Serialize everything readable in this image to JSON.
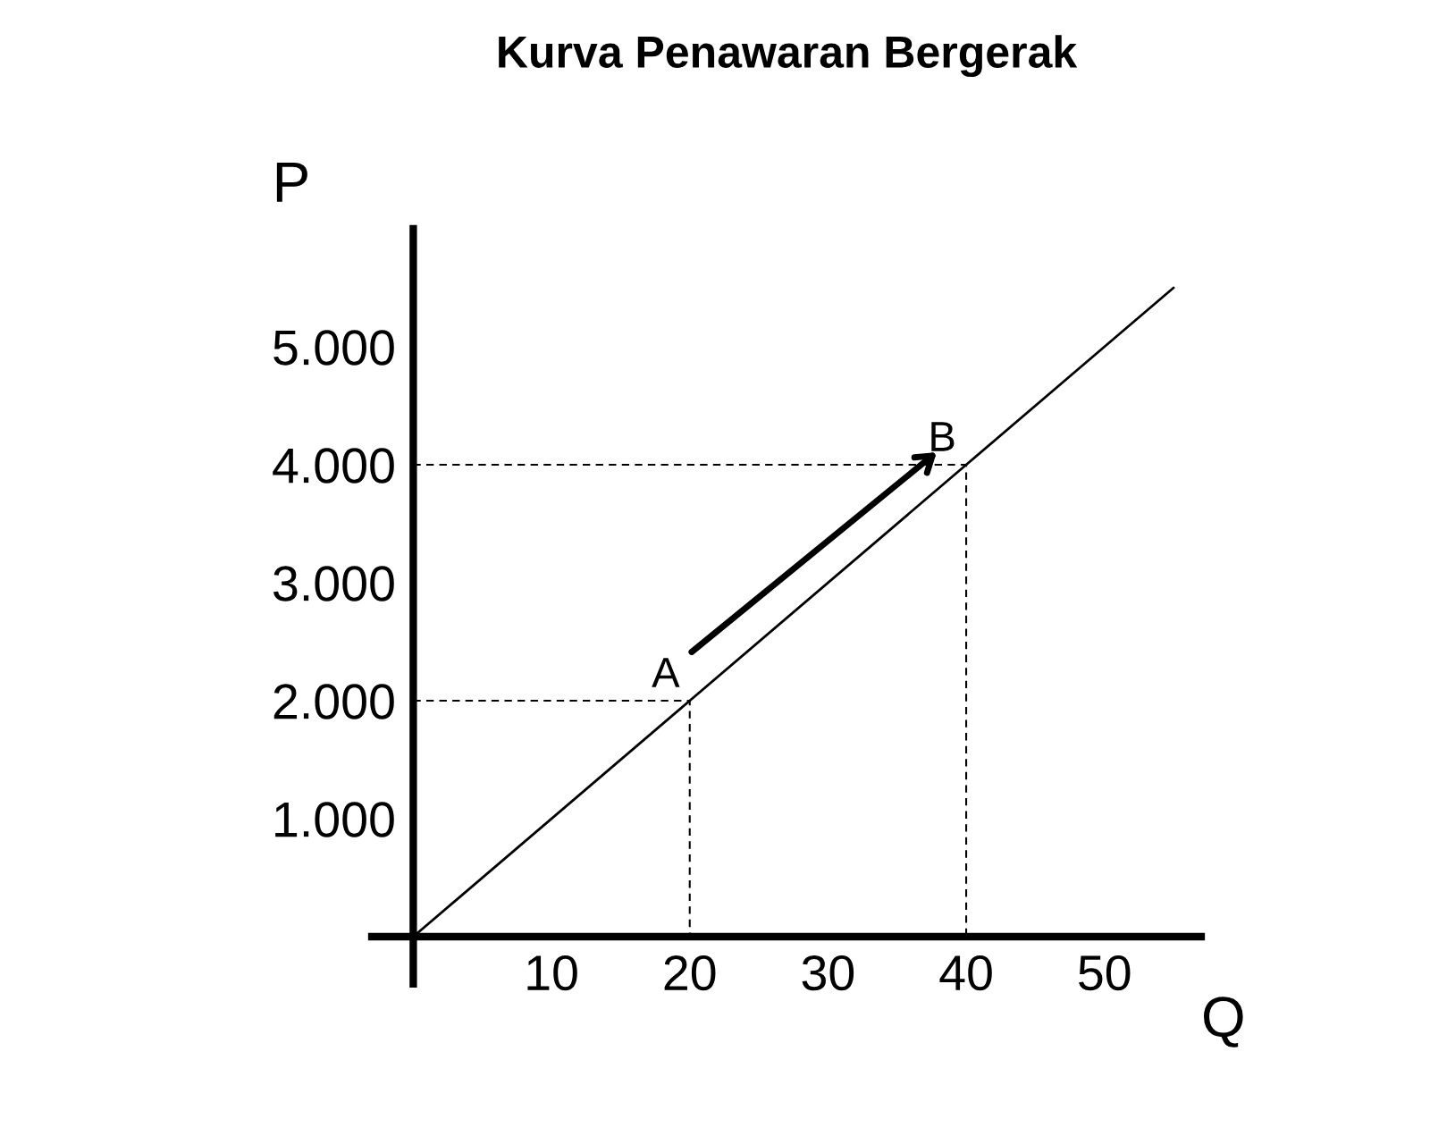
{
  "chart_data": {
    "type": "line",
    "title": "Kurva Penawaran Bergerak",
    "xlabel": "Q",
    "ylabel": "P",
    "series": [
      {
        "color": "#000000",
        "line_style": "solid",
        "x": [
          0,
          20,
          40,
          55
        ],
        "values": [
          0,
          2000,
          4000,
          5500
        ]
      },
      {
        "color": "#000000",
        "line_style": "dashed",
        "x": [
          0,
          20,
          20
        ],
        "values": [
          2000,
          2000,
          0
        ]
      },
      {
        "color": "#000000",
        "line_style": "dashed",
        "x": [
          0,
          40,
          40
        ],
        "values": [
          4000,
          4000,
          0
        ]
      }
    ],
    "annotations": [
      {
        "text": "A",
        "x": 20,
        "y": 2000
      },
      {
        "text": "B",
        "x": 40,
        "y": 4000
      }
    ],
    "xlim": [
      -3,
      57
    ],
    "ylim": [
      -400,
      6000
    ],
    "xticks": [
      10,
      20,
      30,
      40,
      50
    ],
    "yticks": [
      {
        "value": 1000,
        "label": "1.000"
      },
      {
        "value": 2000,
        "label": "2.000"
      },
      {
        "value": 3000,
        "label": "3.000"
      },
      {
        "value": 4000,
        "label": "4.000"
      },
      {
        "value": 5000,
        "label": "5.000"
      }
    ],
    "grid": false,
    "legend": false
  }
}
